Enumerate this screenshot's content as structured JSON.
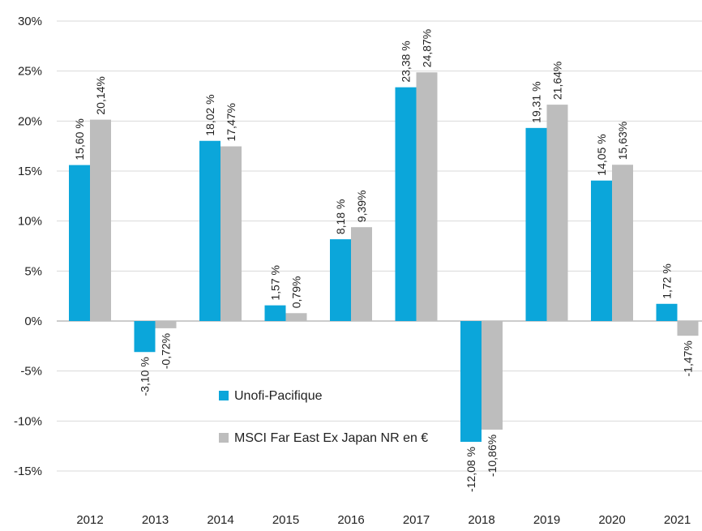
{
  "chart_data": {
    "type": "bar",
    "categories": [
      "2012",
      "2013",
      "2014",
      "2015",
      "2016",
      "2017",
      "2018",
      "2019",
      "2020",
      "2021"
    ],
    "series": [
      {
        "name": "Unofi-Pacifique",
        "color": "#0BA6DA",
        "values": [
          15.6,
          -3.1,
          18.02,
          1.57,
          8.18,
          23.38,
          -12.08,
          19.31,
          14.05,
          1.72
        ],
        "labels": [
          "15,60 %",
          "-3,10 %",
          "18,02 %",
          "1,57 %",
          "8,18 %",
          "23,38 %",
          "-12,08 %",
          "19,31 %",
          "14,05 %",
          "1,72 %"
        ]
      },
      {
        "name": "MSCI Far East Ex Japan NR en €",
        "color": "#BDBDBD",
        "values": [
          20.14,
          -0.72,
          17.47,
          0.79,
          9.39,
          24.87,
          -10.86,
          21.64,
          15.63,
          -1.47
        ],
        "labels": [
          "20,14%",
          "-0,72%",
          "17,47%",
          "0,79%",
          "9,39%",
          "24,87%",
          "-10,86%",
          "21,64%",
          "15,63%",
          "-1,47%"
        ]
      }
    ],
    "yticks": [
      "-15%",
      "-10%",
      "-5%",
      "0%",
      "5%",
      "10%",
      "15%",
      "20%",
      "25%",
      "30%"
    ],
    "ytick_values": [
      -15,
      -10,
      -5,
      0,
      5,
      10,
      15,
      20,
      25,
      30
    ],
    "ylim": [
      -15,
      30
    ],
    "grid": true,
    "legend_position": "bottom-center-left",
    "title": "",
    "xlabel": "",
    "ylabel": ""
  }
}
